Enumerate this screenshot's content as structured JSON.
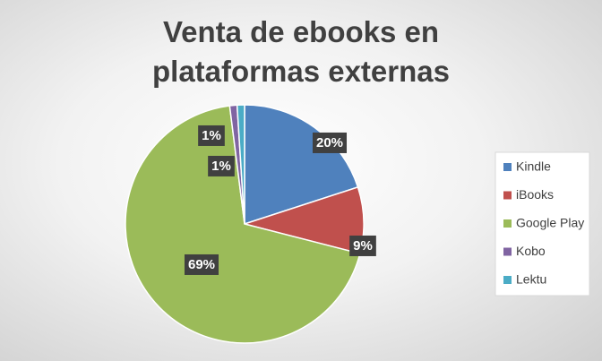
{
  "chart_data": {
    "type": "pie",
    "title": "Venta de ebooks en plataformas externas",
    "categories": [
      "Kindle",
      "iBooks",
      "Google Play",
      "Kobo",
      "Lektu"
    ],
    "values": [
      20,
      9,
      69,
      1,
      1
    ],
    "value_labels": [
      "20%",
      "9%",
      "69%",
      "1%",
      "1%"
    ],
    "colors": [
      "#4f81bd",
      "#c0504d",
      "#9bbb59",
      "#8064a2",
      "#4bacc6"
    ],
    "legend": "right"
  }
}
